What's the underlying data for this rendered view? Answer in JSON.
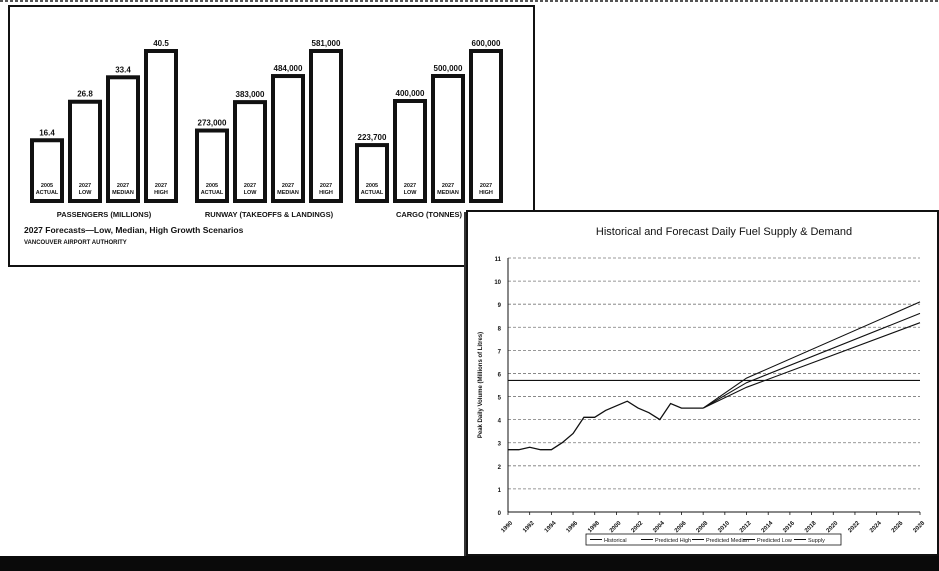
{
  "left_chart": {
    "chart_data": {
      "type": "bar",
      "title": "2027 Forecasts—Low, Median, High Growth Scenarios",
      "subtitle": "VANCOUVER AIRPORT AUTHORITY",
      "groups": [
        {
          "name": "PASSENGERS (MILLIONS)",
          "ymax": 40.5,
          "bars": [
            {
              "label": "2005 ACTUAL",
              "value": 16.4,
              "display": "16.4"
            },
            {
              "label": "2027 LOW",
              "value": 26.8,
              "display": "26.8"
            },
            {
              "label": "2027 MEDIAN",
              "value": 33.4,
              "display": "33.4"
            },
            {
              "label": "2027 HIGH",
              "value": 40.5,
              "display": "40.5"
            }
          ]
        },
        {
          "name": "RUNWAY (TAKEOFFS & LANDINGS)",
          "ymax": 581000,
          "bars": [
            {
              "label": "2005 ACTUAL",
              "value": 273000,
              "display": "273,000"
            },
            {
              "label": "2027 LOW",
              "value": 383000,
              "display": "383,000"
            },
            {
              "label": "2027 MEDIAN",
              "value": 484000,
              "display": "484,000"
            },
            {
              "label": "2027 HIGH",
              "value": 581000,
              "display": "581,000"
            }
          ]
        },
        {
          "name": "CARGO (TONNES)",
          "ymax": 600000,
          "bars": [
            {
              "label": "2005 ACTUAL",
              "value": 223700,
              "display": "223,700"
            },
            {
              "label": "2027 LOW",
              "value": 400000,
              "display": "400,000"
            },
            {
              "label": "2027 MEDIAN",
              "value": 500000,
              "display": "500,000"
            },
            {
              "label": "2027 HIGH",
              "value": 600000,
              "display": "600,000"
            }
          ]
        }
      ]
    }
  },
  "right_chart": {
    "chart_data": {
      "type": "line",
      "title": "Historical and Forecast Daily Fuel Supply & Demand",
      "xlabel": "",
      "ylabel": "Peak Daily Volume (Millions of Litres)",
      "xlim": [
        1990,
        2028
      ],
      "ylim": [
        0,
        11
      ],
      "y_ticks": [
        0,
        1,
        2,
        3,
        4,
        5,
        6,
        7,
        8,
        9,
        10,
        11
      ],
      "x_ticks": [
        "1990",
        "1992",
        "1994",
        "1996",
        "1998",
        "2000",
        "2002",
        "2004",
        "2006",
        "2008",
        "2010",
        "2012",
        "2014",
        "2016",
        "2018",
        "2020",
        "2022",
        "2024",
        "2026",
        "2028"
      ],
      "grid": true,
      "legend_position": "bottom",
      "series": [
        {
          "name": "Historical",
          "x": [
            1990,
            1991,
            1992,
            1993,
            1994,
            1995,
            1996,
            1997,
            1998,
            1999,
            2000,
            2001,
            2002,
            2003,
            2004,
            2005,
            2006,
            2007,
            2008
          ],
          "y": [
            2.7,
            2.7,
            2.8,
            2.7,
            2.7,
            3.0,
            3.4,
            4.1,
            4.1,
            4.4,
            4.6,
            4.8,
            4.5,
            4.3,
            4.0,
            4.7,
            4.5,
            4.5,
            4.5
          ]
        },
        {
          "name": "Predicted High",
          "x": [
            2008,
            2012,
            2028
          ],
          "y": [
            4.5,
            5.8,
            9.1
          ]
        },
        {
          "name": "Predicted Median",
          "x": [
            2008,
            2012,
            2028
          ],
          "y": [
            4.5,
            5.6,
            8.6
          ]
        },
        {
          "name": "Predicted Low",
          "x": [
            2008,
            2012,
            2028
          ],
          "y": [
            4.5,
            5.4,
            8.2
          ]
        },
        {
          "name": "Supply",
          "x": [
            1990,
            2028
          ],
          "y": [
            5.7,
            5.7
          ]
        }
      ]
    }
  },
  "colors": {
    "ink": "#111111",
    "grid": "#777777",
    "background": "#ffffff"
  }
}
